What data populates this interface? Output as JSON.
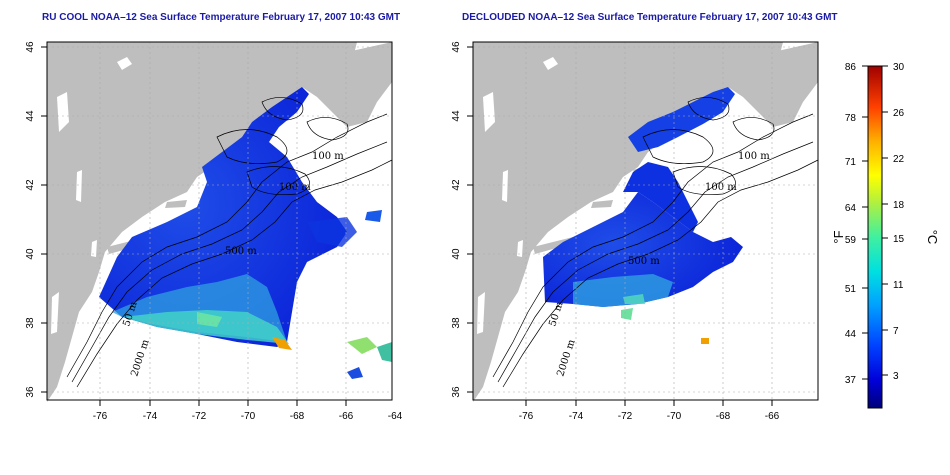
{
  "panels": [
    {
      "id": "left",
      "title": "RU COOL NOAA–12 Sea Surface Temperature February 17, 2007 10:43 GMT"
    },
    {
      "id": "right",
      "title": "DECLOUDED NOAA–12 Sea Surface Temperature February 17, 2007 10:43 GMT"
    }
  ],
  "axes": {
    "lon_ticks": [
      "-76",
      "-74",
      "-72",
      "-70",
      "-68",
      "-66",
      "-64"
    ],
    "lat_ticks": [
      "36",
      "38",
      "40",
      "42",
      "44",
      "46"
    ]
  },
  "contour_labels": {
    "left": [
      "100 m",
      "100 m",
      "500 m",
      "50 m",
      "2000 m"
    ],
    "right": [
      "100 m",
      "100 m",
      "500 m",
      "50 m",
      "2000 m"
    ]
  },
  "colorbar": {
    "fahrenheit_label": "°F",
    "celsius_label": "°C",
    "fahrenheit_ticks": [
      "86",
      "78",
      "71",
      "64",
      "59",
      "51",
      "44",
      "37"
    ],
    "celsius_ticks": [
      "30",
      "26",
      "22",
      "18",
      "15",
      "11",
      "7",
      "3"
    ]
  },
  "colors": {
    "land": "#bebebe",
    "ocean": "#ffffff",
    "title": "#1a1aa6"
  }
}
